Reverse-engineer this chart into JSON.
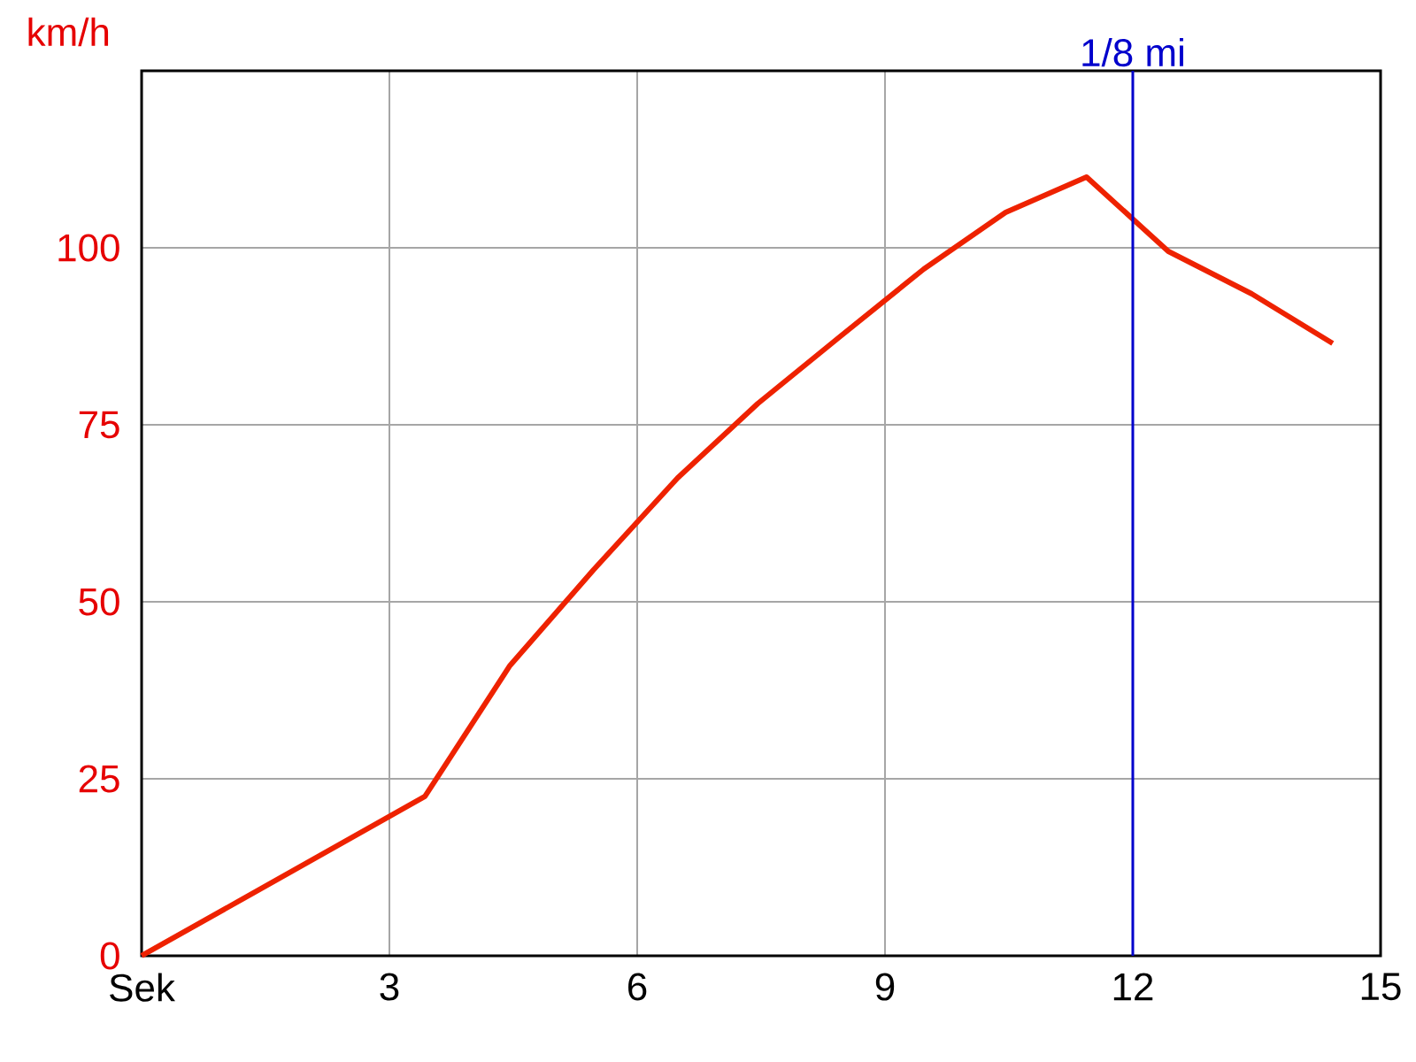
{
  "chart_data": {
    "type": "line",
    "ylabel": "km/h",
    "x": [
      0,
      3.43,
      4.46,
      5.47,
      6.49,
      7.46,
      8.46,
      9.47,
      10.46,
      11.44,
      12.43,
      13.44,
      14.42
    ],
    "series": [
      {
        "color": "#ee2200",
        "values": [
          0,
          22.5,
          41,
          54.5,
          67.5,
          78,
          87.5,
          97,
          105,
          110,
          99.5,
          93.5,
          86.5
        ]
      }
    ],
    "xlim": [
      0,
      15
    ],
    "ylim": [
      0,
      125
    ],
    "xticks": [
      {
        "value": 0,
        "label": "Sek"
      },
      3,
      6,
      9,
      12,
      15
    ],
    "yticks": [
      0,
      25,
      50,
      75,
      100
    ],
    "ref_lines": [
      {
        "axis": "x",
        "value": 12,
        "label": "1/8 mi",
        "color": "#0000cc"
      }
    ],
    "grid": true,
    "marker": "none",
    "line_style": "solid"
  }
}
